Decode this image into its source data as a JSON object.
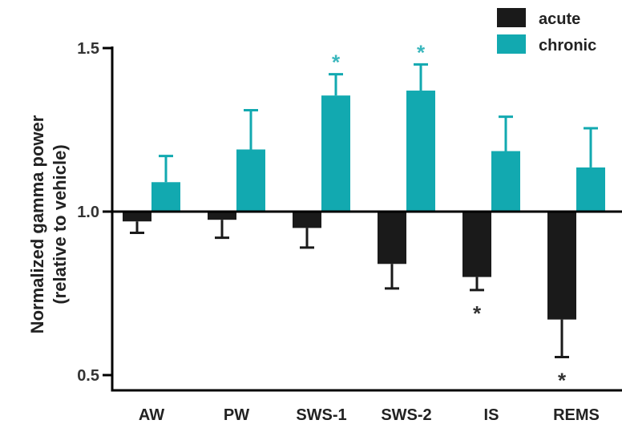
{
  "chart_data": {
    "type": "bar",
    "categories": [
      "AW",
      "PW",
      "SWS-1",
      "SWS-2",
      "IS",
      "REMS"
    ],
    "baseline": 1.0,
    "ylim": [
      0.5,
      1.5
    ],
    "yticks": [
      "0.5",
      "1.0",
      "1.5"
    ],
    "ylabel": [
      "Normalized gamma power",
      "(relative to vehicle)"
    ],
    "xlabel": "",
    "title": "",
    "legend_position": "top-right",
    "series": [
      {
        "name": "acute",
        "color": "#1a1a1a",
        "values": [
          0.97,
          0.975,
          0.95,
          0.84,
          0.8,
          0.67
        ],
        "errors": [
          0.035,
          0.055,
          0.06,
          0.075,
          0.04,
          0.115
        ],
        "significant": [
          false,
          false,
          false,
          false,
          true,
          true
        ]
      },
      {
        "name": "chronic",
        "color": "#12a9b0",
        "values": [
          1.09,
          1.19,
          1.355,
          1.37,
          1.185,
          1.135
        ],
        "errors": [
          0.08,
          0.12,
          0.065,
          0.08,
          0.105,
          0.12
        ],
        "significant": [
          false,
          false,
          true,
          true,
          false,
          false
        ]
      }
    ],
    "significance_marker": "*"
  }
}
